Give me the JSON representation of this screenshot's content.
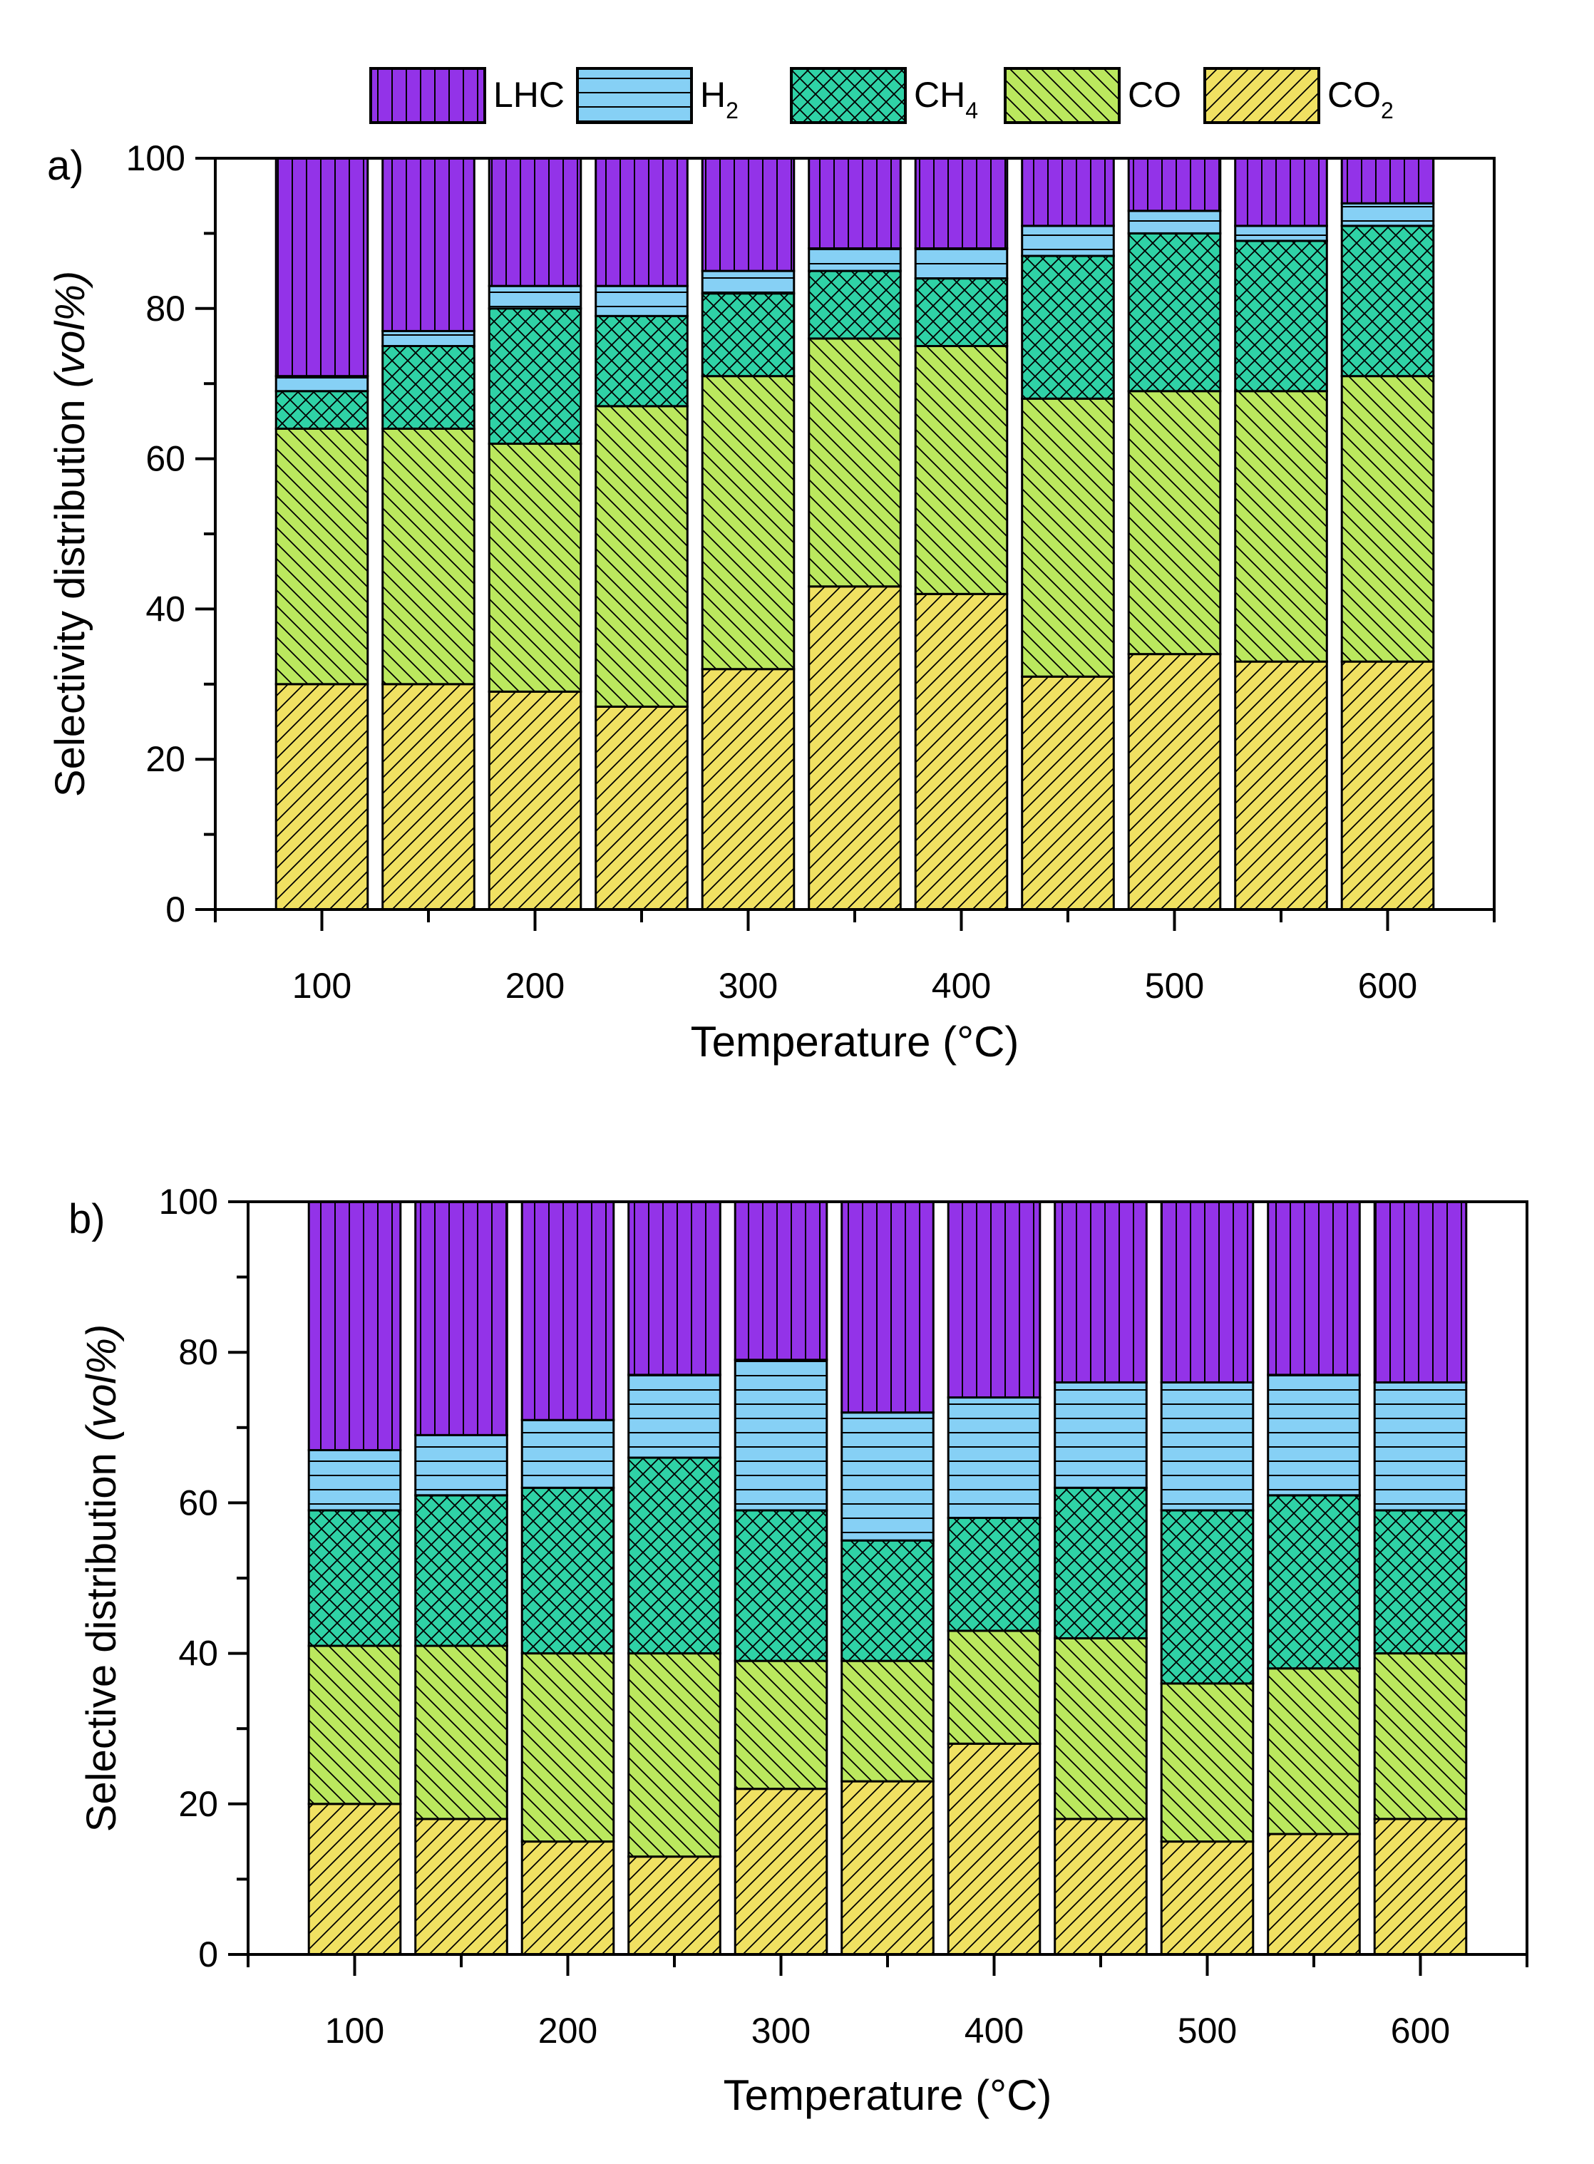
{
  "legend": {
    "items": [
      {
        "key": "LHC",
        "label": "LHC",
        "sub": "",
        "color": "#9333e8"
      },
      {
        "key": "H2",
        "label": "H",
        "sub": "2",
        "color": "#86d0f5"
      },
      {
        "key": "CH4",
        "label": "CH",
        "sub": "4",
        "color": "#2fd2a6"
      },
      {
        "key": "CO",
        "label": "CO",
        "sub": "",
        "color": "#bbe85e"
      },
      {
        "key": "CO2",
        "label": "CO",
        "sub": "2",
        "color": "#f0e162"
      }
    ]
  },
  "chart_data": [
    {
      "type": "bar",
      "stacked": true,
      "panel": "a)",
      "xlabel": "Temperature (°C)",
      "ylabel_main": "Selectivity distribution ",
      "ylabel_italic": "(vol%)",
      "ylim": [
        0,
        100
      ],
      "yticks": [
        0,
        20,
        40,
        60,
        80,
        100
      ],
      "xlim": [
        50,
        650
      ],
      "xticks": [
        100,
        200,
        300,
        400,
        500,
        600
      ],
      "x": [
        100,
        150,
        200,
        250,
        300,
        350,
        400,
        450,
        500,
        550,
        600
      ],
      "series": [
        {
          "name": "CO2",
          "values": [
            30,
            30,
            29,
            27,
            32,
            43,
            42,
            31,
            34,
            33,
            33
          ]
        },
        {
          "name": "CO",
          "values": [
            34,
            34,
            33,
            40,
            39,
            33,
            33,
            37,
            35,
            36,
            38
          ]
        },
        {
          "name": "CH4",
          "values": [
            5,
            11,
            18,
            12,
            11,
            9,
            9,
            19,
            21,
            20,
            20
          ]
        },
        {
          "name": "H2",
          "values": [
            2,
            2,
            3,
            4,
            3,
            3,
            4,
            4,
            3,
            2,
            3
          ]
        },
        {
          "name": "LHC",
          "values": [
            29,
            23,
            17,
            17,
            15,
            12,
            12,
            9,
            7,
            9,
            6
          ]
        }
      ]
    },
    {
      "type": "bar",
      "stacked": true,
      "panel": "b)",
      "xlabel": "Temperature (°C)",
      "ylabel_main": "Selective distribution ",
      "ylabel_italic": "(vol%)",
      "ylim": [
        0,
        100
      ],
      "yticks": [
        0,
        20,
        40,
        60,
        80,
        100
      ],
      "xlim": [
        50,
        650
      ],
      "xticks": [
        100,
        200,
        300,
        400,
        500,
        600
      ],
      "x": [
        100,
        150,
        200,
        250,
        300,
        350,
        400,
        450,
        500,
        550,
        600
      ],
      "series": [
        {
          "name": "CO2",
          "values": [
            20,
            18,
            15,
            13,
            22,
            23,
            28,
            18,
            15,
            16,
            18
          ]
        },
        {
          "name": "CO",
          "values": [
            21,
            23,
            25,
            27,
            17,
            16,
            15,
            24,
            21,
            22,
            22
          ]
        },
        {
          "name": "CH4",
          "values": [
            18,
            20,
            22,
            26,
            20,
            16,
            15,
            20,
            23,
            23,
            19
          ]
        },
        {
          "name": "H2",
          "values": [
            8,
            8,
            9,
            11,
            20,
            17,
            16,
            14,
            17,
            16,
            17
          ]
        },
        {
          "name": "LHC",
          "values": [
            33,
            31,
            29,
            23,
            21,
            28,
            26,
            24,
            24,
            23,
            24
          ]
        }
      ]
    }
  ]
}
